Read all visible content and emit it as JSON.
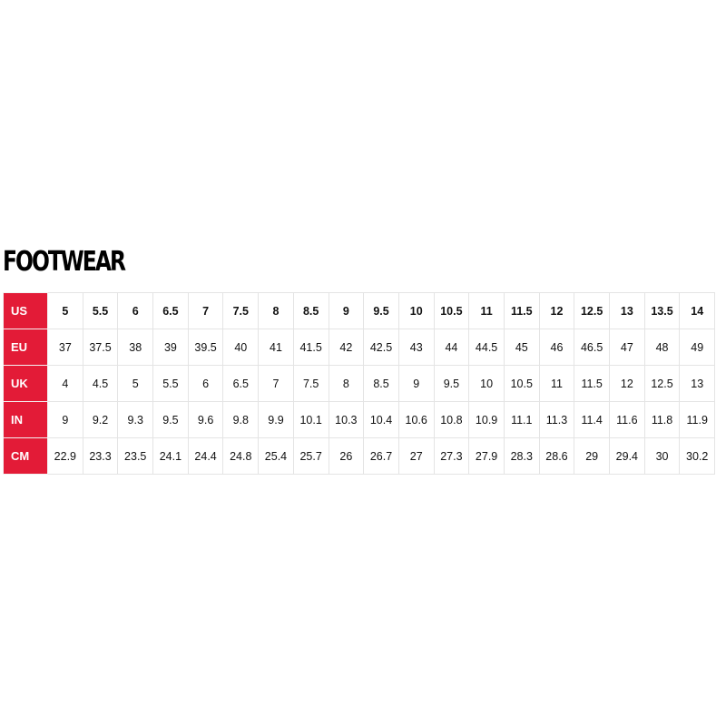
{
  "title": "FOOTWEAR",
  "accent_color": "#e31b37",
  "rows": [
    {
      "label": "US",
      "values": [
        "5",
        "5.5",
        "6",
        "6.5",
        "7",
        "7.5",
        "8",
        "8.5",
        "9",
        "9.5",
        "10",
        "10.5",
        "11",
        "11.5",
        "12",
        "12.5",
        "13",
        "13.5",
        "14"
      ]
    },
    {
      "label": "EU",
      "values": [
        "37",
        "37.5",
        "38",
        "39",
        "39.5",
        "40",
        "41",
        "41.5",
        "42",
        "42.5",
        "43",
        "44",
        "44.5",
        "45",
        "46",
        "46.5",
        "47",
        "48",
        "49"
      ]
    },
    {
      "label": "UK",
      "values": [
        "4",
        "4.5",
        "5",
        "5.5",
        "6",
        "6.5",
        "7",
        "7.5",
        "8",
        "8.5",
        "9",
        "9.5",
        "10",
        "10.5",
        "11",
        "11.5",
        "12",
        "12.5",
        "13"
      ]
    },
    {
      "label": "IN",
      "values": [
        "9",
        "9.2",
        "9.3",
        "9.5",
        "9.6",
        "9.8",
        "9.9",
        "10.1",
        "10.3",
        "10.4",
        "10.6",
        "10.8",
        "10.9",
        "11.1",
        "11.3",
        "11.4",
        "11.6",
        "11.8",
        "11.9"
      ]
    },
    {
      "label": "CM",
      "values": [
        "22.9",
        "23.3",
        "23.5",
        "24.1",
        "24.4",
        "24.8",
        "25.4",
        "25.7",
        "26",
        "26.7",
        "27",
        "27.3",
        "27.9",
        "28.3",
        "28.6",
        "29",
        "29.4",
        "30",
        "30.2"
      ]
    }
  ]
}
